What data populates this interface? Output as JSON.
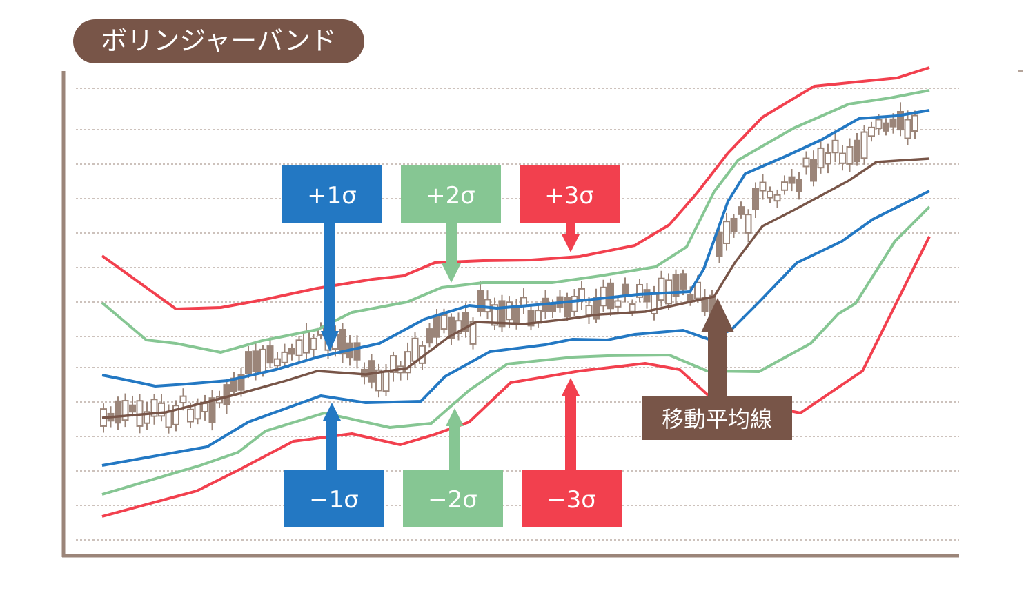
{
  "title": "ボリンジャーバンド",
  "labels": {
    "plus1": "+1σ",
    "plus2": "+2σ",
    "plus3": "+3σ",
    "minus1": "−1σ",
    "minus2": "−2σ",
    "minus3": "−3σ",
    "moving_average": "移動平均線"
  },
  "colors": {
    "sigma1": "#2378c3",
    "sigma2": "#86c693",
    "sigma3": "#f2404e",
    "moving_average": "#785548",
    "candle": "#9b8579",
    "title_bg": "#785548",
    "axis": "#9b8579"
  }
}
